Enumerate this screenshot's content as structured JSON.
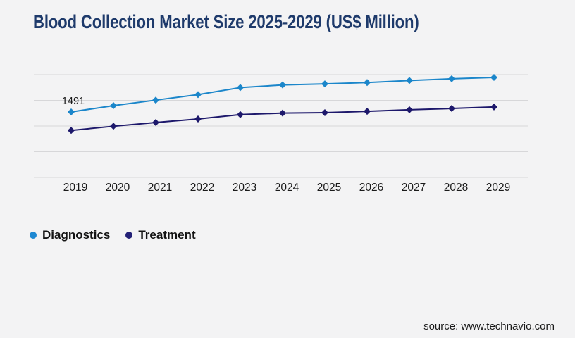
{
  "page": {
    "background_color": "#f3f3f4"
  },
  "header": {
    "title": "Blood Collection Market Size 2025-2029 (US$ Million)",
    "title_color": "#1e3a6b"
  },
  "chart_data": {
    "type": "line",
    "title": "Blood Collection Market Size 2025-2029 (US$ Million)",
    "xlabel": "",
    "ylabel": "",
    "x_tick_labels": [
      "2019",
      "2020",
      "2021",
      "2022",
      "2023",
      "2024",
      "2025",
      "2026",
      "2027",
      "2028",
      "2029"
    ],
    "y_axis": {
      "ylim": [
        0,
        2340
      ],
      "gridlines": 5,
      "grid": true,
      "tick_labels_visible": false
    },
    "series": [
      {
        "name": "Diagnostics",
        "color": "#1b86ca",
        "marker": "diamond",
        "values": [
          1491,
          1635,
          1760,
          1885,
          2045,
          2105,
          2130,
          2160,
          2205,
          2245,
          2275
        ]
      },
      {
        "name": "Treatment",
        "color": "#1d186b",
        "marker": "diamond",
        "values": [
          1070,
          1165,
          1250,
          1330,
          1430,
          1465,
          1475,
          1505,
          1540,
          1570,
          1605
        ]
      }
    ],
    "data_labels": [
      {
        "series": "Diagnostics",
        "x": "2019",
        "text": "1491"
      }
    ],
    "legend_position": "bottom-left",
    "gridline_color": "#d7d7d9",
    "axis_text_color": "#1a1a1a"
  },
  "legend": {
    "items": [
      {
        "label": "Diagnostics",
        "color": "#1e88d2"
      },
      {
        "label": "Treatment",
        "color": "#232076"
      }
    ]
  },
  "footer": {
    "source_label": "source: www.technavio.com"
  }
}
